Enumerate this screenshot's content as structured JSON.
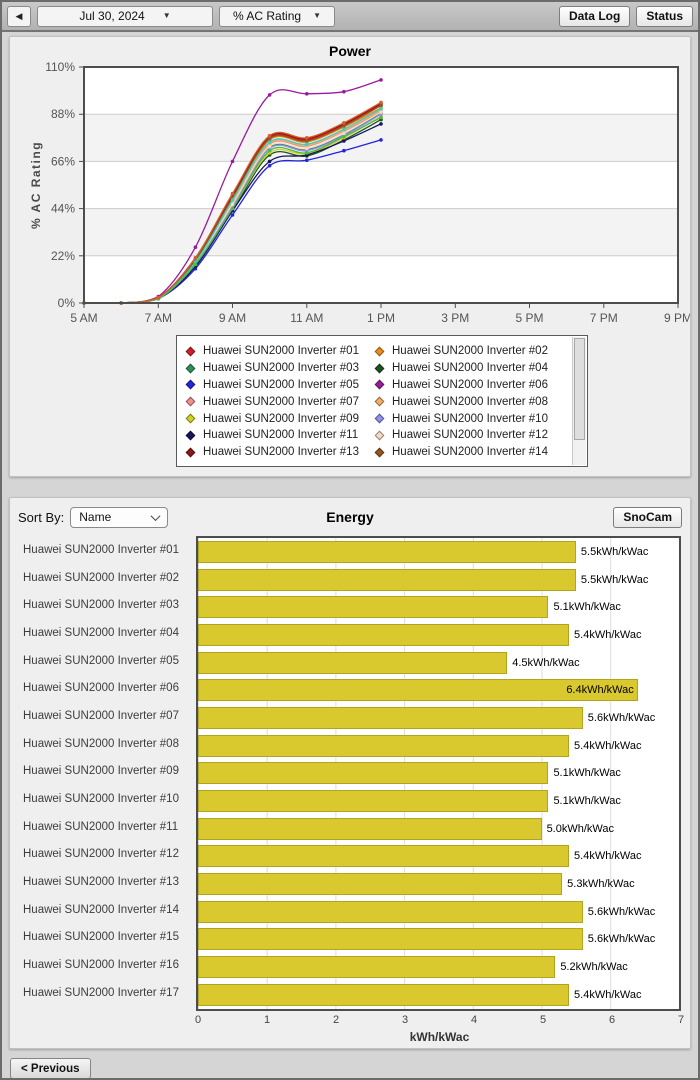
{
  "toolbar": {
    "prev_icon": "◀",
    "date": "Jul 30, 2024",
    "metric": "% AC Rating",
    "dropdown_icon": "▼",
    "data_log_label": "Data Log",
    "status_label": "Status"
  },
  "energy": {
    "sort_by_label": "Sort By:",
    "sort_value": "Name",
    "snocam_label": "SnoCam"
  },
  "footer": {
    "previous_label": "< Previous"
  },
  "colors": {
    "bar": "#d9c92e",
    "bar_border": "#b1a41e",
    "panel": "#efefef",
    "plot_border": "#4d4d4d",
    "band_gray": "#f3f3f3"
  },
  "chart_data": [
    {
      "type": "line",
      "title": "Power",
      "ylabel": "% AC Rating",
      "xlabel": "",
      "x_hours": [
        5,
        6,
        7,
        8,
        9,
        10,
        11,
        12,
        13
      ],
      "x_range": [
        5,
        21
      ],
      "x_tick_hours": [
        5,
        7,
        9,
        11,
        13,
        15,
        17,
        19,
        21
      ],
      "x_tick_labels": [
        "5 AM",
        "7 AM",
        "9 AM",
        "11 AM",
        "1 PM",
        "3 PM",
        "5 PM",
        "7 PM",
        "9 PM"
      ],
      "ylim": [
        0,
        110
      ],
      "y_tick_values": [
        0,
        22,
        44,
        66,
        88,
        110
      ],
      "y_tick_labels": [
        "0%",
        "22%",
        "44%",
        "66%",
        "88%",
        "110%"
      ],
      "legend_visible_count": 14,
      "legend_position": "bottom",
      "grid": "horizontal-bands",
      "series": [
        {
          "name": "Huawei SUN2000 Inverter #01",
          "color": "#cd2128",
          "values": [
            0,
            0,
            2.5,
            20,
            50,
            77,
            76,
            83,
            92.5
          ]
        },
        {
          "name": "Huawei SUN2000 Inverter #02",
          "color": "#ef8b1d",
          "values": [
            0,
            0,
            2,
            20,
            48,
            76,
            75,
            82,
            91
          ]
        },
        {
          "name": "Huawei SUN2000 Inverter #03",
          "color": "#2f9057",
          "values": [
            0,
            0,
            2,
            18,
            46,
            72.5,
            71.5,
            78.5,
            88.5
          ]
        },
        {
          "name": "Huawei SUN2000 Inverter #04",
          "color": "#1f521f",
          "values": [
            0,
            0,
            2,
            17,
            43,
            69,
            68.5,
            76,
            85.5
          ]
        },
        {
          "name": "Huawei SUN2000 Inverter #05",
          "color": "#2424dd",
          "values": [
            0,
            0,
            2,
            16,
            41,
            64,
            66.5,
            71,
            76
          ]
        },
        {
          "name": "Huawei SUN2000 Inverter #06",
          "color": "#9a1b9e",
          "values": [
            0,
            0,
            3,
            26,
            66,
            97,
            97.5,
            98.5,
            104
          ]
        },
        {
          "name": "Huawei SUN2000 Inverter #07",
          "color": "#f28e8e",
          "values": [
            0,
            0,
            2,
            19,
            47,
            74,
            73,
            80,
            89.5
          ]
        },
        {
          "name": "Huawei SUN2000 Inverter #08",
          "color": "#f1b065",
          "values": [
            0,
            0,
            2,
            19,
            47,
            74.5,
            73.5,
            80.5,
            90
          ]
        },
        {
          "name": "Huawei SUN2000 Inverter #09",
          "color": "#ced321",
          "values": [
            0,
            0,
            2,
            18,
            44,
            70,
            69.5,
            77,
            87
          ]
        },
        {
          "name": "Huawei SUN2000 Inverter #10",
          "color": "#9090f0",
          "values": [
            0,
            0,
            2,
            18,
            45,
            72,
            71,
            78,
            88
          ]
        },
        {
          "name": "Huawei SUN2000 Inverter #11",
          "color": "#16165f",
          "values": [
            0,
            0,
            2,
            17,
            43,
            66,
            69,
            75.5,
            83.5
          ]
        },
        {
          "name": "Huawei SUN2000 Inverter #12",
          "color": "#f6d9c5",
          "values": [
            0,
            0,
            2,
            19,
            46,
            73,
            72,
            79,
            89
          ]
        },
        {
          "name": "Huawei SUN2000 Inverter #13",
          "color": "#8f1616",
          "values": [
            0,
            0,
            2.5,
            21,
            50,
            77.5,
            76.5,
            83.5,
            93
          ]
        },
        {
          "name": "Huawei SUN2000 Inverter #14",
          "color": "#96561b",
          "values": [
            0,
            0,
            2.5,
            20,
            49,
            76.5,
            75.5,
            82.5,
            92
          ]
        },
        {
          "name": "Huawei SUN2000 Inverter #15",
          "color": "#3bcfc0",
          "values": [
            0,
            0,
            2,
            19,
            48,
            75,
            74,
            81,
            90.5
          ]
        },
        {
          "name": "Huawei SUN2000 Inverter #16",
          "color": "#4fb848",
          "values": [
            0,
            0,
            2,
            18,
            44,
            71,
            70,
            77.5,
            86.5
          ]
        },
        {
          "name": "Huawei SUN2000 Inverter #17",
          "color": "#d85c2e",
          "values": [
            0,
            0,
            2.5,
            21,
            51,
            78,
            77,
            84,
            93.5
          ]
        }
      ]
    },
    {
      "type": "bar",
      "orientation": "horizontal",
      "title": "Energy",
      "xlabel": "kWh/kWac",
      "categories": [
        "Huawei SUN2000 Inverter #01",
        "Huawei SUN2000 Inverter #02",
        "Huawei SUN2000 Inverter #03",
        "Huawei SUN2000 Inverter #04",
        "Huawei SUN2000 Inverter #05",
        "Huawei SUN2000 Inverter #06",
        "Huawei SUN2000 Inverter #07",
        "Huawei SUN2000 Inverter #08",
        "Huawei SUN2000 Inverter #09",
        "Huawei SUN2000 Inverter #10",
        "Huawei SUN2000 Inverter #11",
        "Huawei SUN2000 Inverter #12",
        "Huawei SUN2000 Inverter #13",
        "Huawei SUN2000 Inverter #14",
        "Huawei SUN2000 Inverter #15",
        "Huawei SUN2000 Inverter #16",
        "Huawei SUN2000 Inverter #17"
      ],
      "values": [
        5.5,
        5.5,
        5.1,
        5.4,
        4.5,
        6.4,
        5.6,
        5.4,
        5.1,
        5.1,
        5.0,
        5.4,
        5.3,
        5.6,
        5.6,
        5.2,
        5.4
      ],
      "value_suffix": "kWh/kWac",
      "xlim": [
        0,
        7
      ],
      "x_ticks": [
        0,
        1,
        2,
        3,
        4,
        5,
        6,
        7
      ],
      "bar_color": "#d9c92e",
      "grid": "vertical"
    }
  ]
}
